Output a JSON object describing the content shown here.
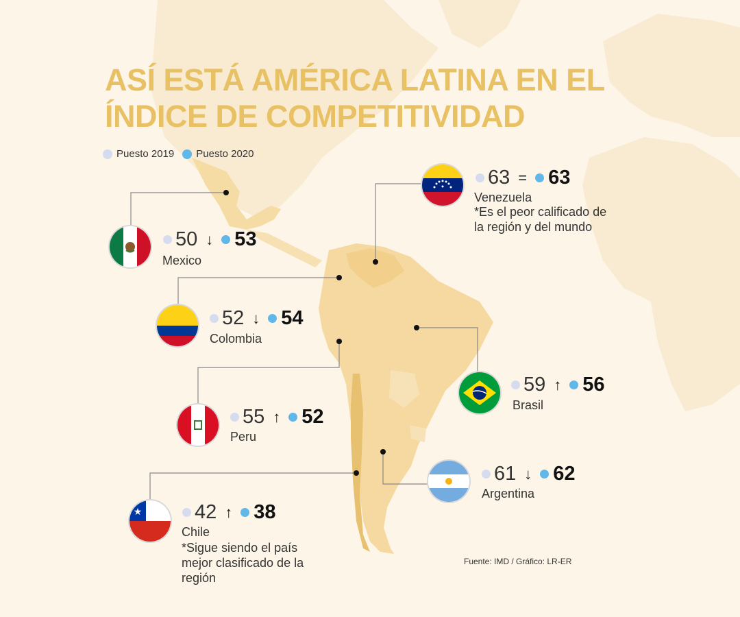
{
  "title": {
    "line1": "ASÍ ESTÁ AMÉRICA LATINA EN EL",
    "line2": "ÍNDICE DE COMPETITIVIDAD"
  },
  "legend": [
    {
      "label": "Puesto 2019",
      "color": "#d6dcef"
    },
    {
      "label": "Puesto 2020",
      "color": "#5fb7ea"
    }
  ],
  "countries": {
    "mexico": {
      "name": "Mexico",
      "rank_2019": "50",
      "trend": "↓",
      "rank_2020": "53"
    },
    "colombia": {
      "name": "Colombia",
      "rank_2019": "52",
      "trend": "↓",
      "rank_2020": "54"
    },
    "peru": {
      "name": "Peru",
      "rank_2019": "55",
      "trend": "↑",
      "rank_2020": "52"
    },
    "chile": {
      "name": "Chile",
      "rank_2019": "42",
      "trend": "↑",
      "rank_2020": "38",
      "note": "*Sigue siendo el país mejor clasificado de la región"
    },
    "venezuela": {
      "name": "Venezuela",
      "rank_2019": "63",
      "trend": "=",
      "rank_2020": "63",
      "note": "*Es el peor calificado de la región y del mundo"
    },
    "brasil": {
      "name": "Brasil",
      "rank_2019": "59",
      "trend": "↑",
      "rank_2020": "56"
    },
    "argentina": {
      "name": "Argentina",
      "rank_2019": "61",
      "trend": "↓",
      "rank_2020": "62"
    }
  },
  "source": "Fuente: IMD / Gráfico: LR-ER",
  "colors": {
    "title": "#e9c165",
    "background": "#fdf5e8",
    "map_light": "#f9e8c8",
    "map_mid": "#f5d9a0",
    "map_dark": "#e8c170",
    "dot_2019": "#d6dcef",
    "dot_2020": "#5fb7ea"
  }
}
